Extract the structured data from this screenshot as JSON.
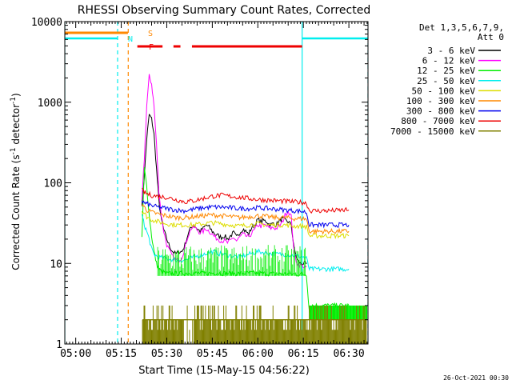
{
  "chart_data": {
    "type": "line",
    "title": "RHESSI Observing Summary Count Rates, Corrected",
    "xlabel": "Start Time (15-May-15 04:56:22)",
    "ylabel": "Corrected Count Rate (s",
    "ylabel_sup1": "-1",
    "ylabel_mid": " detector",
    "ylabel_sup2": "-1",
    "ylabel_end": ")",
    "yscale": "log",
    "ylim": [
      1,
      10000
    ],
    "xlim_minutes": [
      296.4,
      396.3
    ],
    "x_ticks": [
      {
        "label": "05:00",
        "minutes": 300
      },
      {
        "label": "05:15",
        "minutes": 315
      },
      {
        "label": "05:30",
        "minutes": 330
      },
      {
        "label": "05:45",
        "minutes": 345
      },
      {
        "label": "06:00",
        "minutes": 360
      },
      {
        "label": "06:15",
        "minutes": 375
      },
      {
        "label": "06:30",
        "minutes": 390
      }
    ],
    "y_ticks": [
      {
        "label": "1",
        "value": 1
      },
      {
        "label": "10",
        "value": 10
      },
      {
        "label": "100",
        "value": 100
      },
      {
        "label": "1000",
        "value": 1000
      },
      {
        "label": "10000",
        "value": 10000
      }
    ],
    "legend_header": [
      "Det 1,3,5,6,7,9,",
      "Att 0"
    ],
    "legend_position": "right",
    "series": [
      {
        "name": "3 - 6 keV",
        "color": "#000000",
        "points": [
          [
            321.8,
            55
          ],
          [
            322.6,
            120
          ],
          [
            323.4,
            350
          ],
          [
            324.2,
            700
          ],
          [
            325,
            620
          ],
          [
            325.8,
            400
          ],
          [
            326.6,
            150
          ],
          [
            327.4,
            60
          ],
          [
            328.2,
            35
          ],
          [
            329,
            26
          ],
          [
            330,
            20
          ],
          [
            331,
            16
          ],
          [
            332,
            14
          ],
          [
            333,
            13
          ],
          [
            334,
            14
          ],
          [
            335,
            14
          ],
          [
            336,
            17
          ],
          [
            337,
            23
          ],
          [
            338,
            28
          ],
          [
            339,
            30
          ],
          [
            340,
            27
          ],
          [
            341,
            25
          ],
          [
            342,
            27
          ],
          [
            343,
            30
          ],
          [
            344,
            28
          ],
          [
            345,
            25
          ],
          [
            346,
            23
          ],
          [
            347,
            22
          ],
          [
            348,
            21
          ],
          [
            349,
            22
          ],
          [
            350,
            20
          ],
          [
            351,
            22
          ],
          [
            352,
            24
          ],
          [
            353,
            21
          ],
          [
            354,
            24
          ],
          [
            355,
            27
          ],
          [
            356,
            25
          ],
          [
            357,
            23
          ],
          [
            358,
            28
          ],
          [
            359,
            30
          ],
          [
            360,
            35
          ],
          [
            361,
            33
          ],
          [
            362,
            34
          ],
          [
            363,
            33
          ],
          [
            364,
            30
          ],
          [
            365,
            31
          ],
          [
            366,
            30
          ],
          [
            367,
            33
          ],
          [
            368,
            36
          ],
          [
            369,
            34
          ],
          [
            370,
            33
          ],
          [
            371,
            30
          ],
          [
            372,
            15
          ],
          [
            373,
            11
          ],
          [
            374,
            10
          ],
          [
            375,
            10
          ],
          [
            376,
            9.8
          ]
        ]
      },
      {
        "name": "6 - 12 keV",
        "color": "#ff00ff",
        "points": [
          [
            321.8,
            60
          ],
          [
            322.6,
            200
          ],
          [
            323.4,
            900
          ],
          [
            324.2,
            2100
          ],
          [
            325,
            1700
          ],
          [
            325.8,
            900
          ],
          [
            326.6,
            300
          ],
          [
            327.4,
            80
          ],
          [
            328.2,
            40
          ],
          [
            329,
            25
          ],
          [
            330,
            17
          ],
          [
            331,
            14
          ],
          [
            332,
            12
          ],
          [
            333,
            11
          ],
          [
            334,
            11
          ],
          [
            335,
            12
          ],
          [
            336,
            16
          ],
          [
            337,
            22
          ],
          [
            338,
            27
          ],
          [
            339,
            28
          ],
          [
            340,
            26
          ],
          [
            341,
            24
          ],
          [
            342,
            25
          ],
          [
            343,
            27
          ],
          [
            344,
            25
          ],
          [
            345,
            23
          ],
          [
            346,
            21
          ],
          [
            347,
            20
          ],
          [
            348,
            19
          ],
          [
            349,
            19
          ],
          [
            350,
            18
          ],
          [
            351,
            19
          ],
          [
            352,
            21
          ],
          [
            353,
            19
          ],
          [
            354,
            21
          ],
          [
            355,
            23
          ],
          [
            356,
            22
          ],
          [
            357,
            21
          ],
          [
            358,
            24
          ],
          [
            359,
            26
          ],
          [
            360,
            30
          ],
          [
            361,
            29
          ],
          [
            362,
            30
          ],
          [
            363,
            29
          ],
          [
            364,
            27
          ],
          [
            365,
            28
          ],
          [
            366,
            27
          ],
          [
            367,
            29
          ],
          [
            368,
            32
          ],
          [
            369,
            40
          ],
          [
            370,
            45
          ],
          [
            371,
            38
          ],
          [
            372,
            13
          ],
          [
            373,
            10
          ],
          [
            374,
            9.5
          ],
          [
            375,
            9.2
          ],
          [
            376,
            9
          ]
        ]
      },
      {
        "name": "12 - 25 keV",
        "color": "#00ee00",
        "points": [
          [
            321.8,
            20
          ],
          [
            322.6,
            150
          ],
          [
            323.4,
            90
          ],
          [
            324.2,
            40
          ],
          [
            325,
            22
          ],
          [
            325.8,
            14
          ],
          [
            326.6,
            10
          ],
          [
            327.4,
            8.5
          ],
          [
            328.2,
            8
          ],
          [
            330,
            7.5
          ],
          [
            334,
            7.5
          ],
          [
            338,
            7.6
          ],
          [
            342,
            7.5
          ],
          [
            346,
            7.6
          ],
          [
            350,
            7.5
          ],
          [
            354,
            7.5
          ],
          [
            358,
            7.6
          ],
          [
            362,
            7.5
          ],
          [
            366,
            7.4
          ],
          [
            370,
            7.4
          ],
          [
            374,
            7.3
          ],
          [
            376,
            7.3
          ],
          [
            377,
            2.5
          ],
          [
            378,
            3
          ],
          [
            384,
            3
          ],
          [
            390,
            3
          ]
        ]
      },
      {
        "name": "25 - 50 keV",
        "color": "#00eeee",
        "points": [
          [
            321.8,
            40
          ],
          [
            322.6,
            30
          ],
          [
            323.4,
            25
          ],
          [
            324.2,
            20
          ],
          [
            325,
            15
          ],
          [
            325.8,
            13
          ],
          [
            327,
            12
          ],
          [
            330,
            11.5
          ],
          [
            333,
            11
          ],
          [
            336,
            11
          ],
          [
            339,
            12
          ],
          [
            342,
            13
          ],
          [
            345,
            14
          ],
          [
            348,
            13
          ],
          [
            351,
            12.5
          ],
          [
            354,
            12
          ],
          [
            357,
            13
          ],
          [
            360,
            14
          ],
          [
            363,
            13.5
          ],
          [
            366,
            13
          ],
          [
            369,
            13
          ],
          [
            372,
            12.5
          ],
          [
            375,
            12
          ],
          [
            376,
            11.5
          ],
          [
            377,
            8.5
          ],
          [
            381,
            8.5
          ],
          [
            385,
            8.5
          ],
          [
            390,
            8.5
          ]
        ]
      },
      {
        "name": "50 - 100 keV",
        "color": "#dddd00",
        "points": [
          [
            321.8,
            45
          ],
          [
            322.6,
            42
          ],
          [
            323.4,
            38
          ],
          [
            325,
            35
          ],
          [
            327,
            33
          ],
          [
            330,
            31
          ],
          [
            333,
            30
          ],
          [
            336,
            30
          ],
          [
            339,
            30
          ],
          [
            342,
            31
          ],
          [
            345,
            32
          ],
          [
            348,
            31
          ],
          [
            351,
            30
          ],
          [
            354,
            29
          ],
          [
            357,
            30
          ],
          [
            360,
            31
          ],
          [
            363,
            30
          ],
          [
            366,
            30
          ],
          [
            369,
            30
          ],
          [
            372,
            29
          ],
          [
            375,
            29
          ],
          [
            376,
            28.5
          ],
          [
            377,
            22
          ],
          [
            383,
            22
          ],
          [
            390,
            22
          ]
        ]
      },
      {
        "name": "100 - 300 keV",
        "color": "#ff8800",
        "points": [
          [
            321.8,
            55
          ],
          [
            322.6,
            50
          ],
          [
            323.4,
            46
          ],
          [
            325,
            43
          ],
          [
            327,
            41
          ],
          [
            330,
            39
          ],
          [
            333,
            37
          ],
          [
            336,
            37
          ],
          [
            339,
            38
          ],
          [
            342,
            39
          ],
          [
            345,
            40
          ],
          [
            348,
            39
          ],
          [
            351,
            38
          ],
          [
            354,
            37
          ],
          [
            357,
            38
          ],
          [
            360,
            39
          ],
          [
            363,
            38
          ],
          [
            366,
            37
          ],
          [
            369,
            37
          ],
          [
            372,
            36
          ],
          [
            375,
            36
          ],
          [
            376,
            35.5
          ],
          [
            377,
            25
          ],
          [
            383,
            25
          ],
          [
            390,
            25
          ]
        ]
      },
      {
        "name": "300 - 800 keV",
        "color": "#0000ee",
        "points": [
          [
            321.8,
            60
          ],
          [
            322.6,
            56
          ],
          [
            323.4,
            55
          ],
          [
            325,
            52
          ],
          [
            327,
            50
          ],
          [
            330,
            48
          ],
          [
            333,
            46
          ],
          [
            336,
            45
          ],
          [
            339,
            47
          ],
          [
            342,
            49
          ],
          [
            345,
            50
          ],
          [
            348,
            50
          ],
          [
            351,
            49
          ],
          [
            354,
            48
          ],
          [
            357,
            48
          ],
          [
            360,
            49
          ],
          [
            363,
            48
          ],
          [
            366,
            47
          ],
          [
            369,
            46
          ],
          [
            372,
            45
          ],
          [
            375,
            44
          ],
          [
            376,
            43
          ],
          [
            377,
            30
          ],
          [
            383,
            30
          ],
          [
            390,
            30
          ]
        ]
      },
      {
        "name": "800 - 7000 keV",
        "color": "#ee0000",
        "points": [
          [
            321.8,
            80
          ],
          [
            322.6,
            76
          ],
          [
            323.4,
            73
          ],
          [
            325,
            70
          ],
          [
            327,
            68
          ],
          [
            330,
            66
          ],
          [
            333,
            62
          ],
          [
            336,
            58
          ],
          [
            339,
            60
          ],
          [
            342,
            64
          ],
          [
            345,
            68
          ],
          [
            348,
            70
          ],
          [
            351,
            68
          ],
          [
            354,
            66
          ],
          [
            357,
            64
          ],
          [
            360,
            62
          ],
          [
            363,
            61
          ],
          [
            366,
            60
          ],
          [
            369,
            59
          ],
          [
            372,
            58
          ],
          [
            375,
            57
          ],
          [
            376,
            56
          ],
          [
            377,
            45
          ],
          [
            383,
            45
          ],
          [
            390,
            46
          ]
        ]
      },
      {
        "name": "7000 - 15000 keV",
        "color": "#808000",
        "points": []
      }
    ],
    "flags": [
      {
        "label": "S",
        "color": "#ff8800"
      },
      {
        "label": "N",
        "color": "#00eeee"
      },
      {
        "label": "F",
        "color": "#ee0000"
      }
    ],
    "flag_segments": {
      "S": [
        [
          296.4,
          317.2
        ]
      ],
      "N": [
        [
          296.4,
          313.8
        ],
        [
          374.6,
          396.3
        ]
      ],
      "F": [
        [
          320.3,
          328.6
        ],
        [
          332.2,
          334.5
        ],
        [
          338.3,
          374.6
        ]
      ]
    },
    "vertical_lines": [
      {
        "minutes": 296.4,
        "color": "#00eeee",
        "style": "solid"
      },
      {
        "minutes": 313.8,
        "color": "#00eeee",
        "style": "dashed"
      },
      {
        "minutes": 317.3,
        "color": "#ff8800",
        "style": "dashed"
      },
      {
        "minutes": 374.6,
        "color": "#00eeee",
        "style": "solid"
      },
      {
        "minutes": 396.3,
        "color": "#00eeee",
        "style": "dashed"
      }
    ]
  },
  "footer_date": "26-Oct-2021 00:30"
}
